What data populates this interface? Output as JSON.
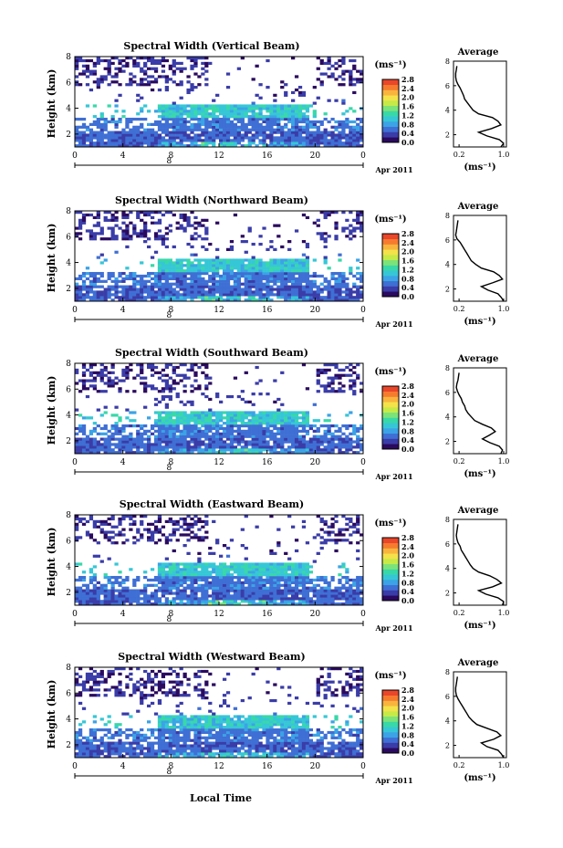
{
  "colors": {
    "background": "#ffffff",
    "axis": "#000000",
    "colorbar": [
      "#2a0a5e",
      "#3a3ca8",
      "#3f6fd4",
      "#3ba3e6",
      "#36c7d6",
      "#39d8a8",
      "#7be37a",
      "#c6ea48",
      "#f4e24a",
      "#f9b43e",
      "#f67b2f",
      "#e9462a"
    ]
  },
  "shared": {
    "xaxis_label": "Local Time",
    "date_label": "Apr 2011",
    "day_marker": "8",
    "avg_title": "Average",
    "ylabel": "Height (km)",
    "units": "(ms⁻¹)"
  },
  "chart_data": [
    {
      "type": "heatmap",
      "title": "Spectral Width (Vertical Beam)",
      "xlabel": "Local Time",
      "ylabel": "Height (km)",
      "xlim": [
        0,
        24
      ],
      "x_ticks": [
        "0",
        "4",
        "8",
        "12",
        "16",
        "20",
        "0"
      ],
      "ylim": [
        1,
        8
      ],
      "y_ticks": [
        "2",
        "4",
        "6",
        "8"
      ],
      "colorbar_ticks": [
        "0.0",
        "0.4",
        "0.8",
        "1.2",
        "1.6",
        "2.0",
        "2.4",
        "2.8"
      ],
      "colorbar_range": [
        0,
        2.8
      ],
      "average_profile": {
        "title": "Average",
        "xlabel": "(ms⁻¹)",
        "x_ticks": [
          "0.2",
          "1.0"
        ],
        "xlim": [
          0.1,
          1.05
        ],
        "y_ticks": [
          "2",
          "4",
          "6",
          "8"
        ],
        "ylim": [
          1,
          8
        ],
        "height": [
          1.0,
          1.3,
          1.6,
          1.9,
          2.2,
          2.5,
          2.8,
          3.1,
          3.4,
          3.7,
          4.0,
          4.3,
          4.6,
          4.9,
          5.2,
          5.5,
          5.8,
          6.1,
          6.4,
          6.7,
          7.0,
          7.3,
          7.6
        ],
        "width": [
          0.95,
          1.0,
          0.92,
          0.7,
          0.55,
          0.78,
          0.95,
          0.9,
          0.8,
          0.55,
          0.45,
          0.4,
          0.35,
          0.3,
          0.28,
          0.25,
          0.22,
          0.18,
          0.15,
          0.14,
          0.14,
          0.15,
          0.16
        ]
      }
    },
    {
      "type": "heatmap",
      "title": "Spectral Width (Northward Beam)",
      "xlabel": "Local Time",
      "ylabel": "Height (km)",
      "xlim": [
        0,
        24
      ],
      "x_ticks": [
        "0",
        "4",
        "8",
        "12",
        "16",
        "20",
        "0"
      ],
      "ylim": [
        1,
        8
      ],
      "y_ticks": [
        "2",
        "4",
        "6",
        "8"
      ],
      "colorbar_ticks": [
        "0.0",
        "0.4",
        "0.8",
        "1.2",
        "1.6",
        "2.0",
        "2.4",
        "2.8"
      ],
      "colorbar_range": [
        0,
        2.8
      ],
      "average_profile": {
        "title": "Average",
        "xlabel": "(ms⁻¹)",
        "x_ticks": [
          "0.2",
          "1.0"
        ],
        "xlim": [
          0.1,
          1.05
        ],
        "y_ticks": [
          "2",
          "4",
          "6",
          "8"
        ],
        "ylim": [
          1,
          8
        ],
        "height": [
          1.0,
          1.3,
          1.6,
          1.9,
          2.2,
          2.5,
          2.8,
          3.1,
          3.4,
          3.7,
          4.0,
          4.3,
          4.6,
          4.9,
          5.2,
          5.5,
          5.8,
          6.1,
          6.4,
          6.7,
          7.0,
          7.3,
          7.6
        ],
        "width": [
          1.0,
          0.96,
          0.9,
          0.72,
          0.6,
          0.8,
          0.98,
          0.92,
          0.82,
          0.6,
          0.5,
          0.42,
          0.38,
          0.34,
          0.3,
          0.26,
          0.22,
          0.16,
          0.14,
          0.15,
          0.16,
          0.17,
          0.18
        ]
      }
    },
    {
      "type": "heatmap",
      "title": "Spectral Width (Southward Beam)",
      "xlabel": "Local Time",
      "ylabel": "Height (km)",
      "xlim": [
        0,
        24
      ],
      "x_ticks": [
        "0",
        "4",
        "8",
        "12",
        "16",
        "20",
        "0"
      ],
      "ylim": [
        1,
        8
      ],
      "y_ticks": [
        "2",
        "4",
        "6",
        "8"
      ],
      "colorbar_ticks": [
        "0.0",
        "0.4",
        "0.8",
        "1.2",
        "1.6",
        "2.0",
        "2.4",
        "2.8"
      ],
      "colorbar_range": [
        0,
        2.8
      ],
      "average_profile": {
        "title": "Average",
        "xlabel": "(ms⁻¹)",
        "x_ticks": [
          "0.2",
          "1.0"
        ],
        "xlim": [
          0.1,
          1.05
        ],
        "y_ticks": [
          "2",
          "4",
          "6",
          "8"
        ],
        "ylim": [
          1,
          8
        ],
        "height": [
          1.0,
          1.3,
          1.6,
          1.9,
          2.2,
          2.5,
          2.8,
          3.1,
          3.4,
          3.7,
          4.0,
          4.3,
          4.6,
          4.9,
          5.2,
          5.5,
          5.8,
          6.1,
          6.4,
          6.7,
          7.0,
          7.3,
          7.6
        ],
        "width": [
          0.95,
          0.98,
          0.92,
          0.75,
          0.62,
          0.74,
          0.85,
          0.78,
          0.62,
          0.48,
          0.42,
          0.36,
          0.32,
          0.3,
          0.26,
          0.24,
          0.2,
          0.17,
          0.15,
          0.16,
          0.18,
          0.19,
          0.2
        ]
      }
    },
    {
      "type": "heatmap",
      "title": "Spectral Width (Eastward Beam)",
      "xlabel": "Local Time",
      "ylabel": "Height (km)",
      "xlim": [
        0,
        24
      ],
      "x_ticks": [
        "0",
        "4",
        "8",
        "12",
        "16",
        "20",
        "0"
      ],
      "ylim": [
        1,
        8
      ],
      "y_ticks": [
        "2",
        "4",
        "6",
        "8"
      ],
      "colorbar_ticks": [
        "0.0",
        "0.4",
        "0.8",
        "1.2",
        "1.6",
        "2.0",
        "2.4",
        "2.8"
      ],
      "colorbar_range": [
        0,
        2.8
      ],
      "average_profile": {
        "title": "Average",
        "xlabel": "(ms⁻¹)",
        "x_ticks": [
          "0.2",
          "1.0"
        ],
        "xlim": [
          0.1,
          1.05
        ],
        "y_ticks": [
          "2",
          "4",
          "6",
          "8"
        ],
        "ylim": [
          1,
          8
        ],
        "height": [
          1.0,
          1.3,
          1.6,
          1.9,
          2.2,
          2.5,
          2.8,
          3.1,
          3.4,
          3.7,
          4.0,
          4.3,
          4.6,
          4.9,
          5.2,
          5.5,
          5.8,
          6.1,
          6.4,
          6.7,
          7.0,
          7.3,
          7.6
        ],
        "width": [
          0.98,
          1.0,
          0.9,
          0.68,
          0.55,
          0.8,
          0.96,
          0.88,
          0.75,
          0.55,
          0.45,
          0.4,
          0.36,
          0.32,
          0.28,
          0.24,
          0.22,
          0.18,
          0.16,
          0.15,
          0.16,
          0.17,
          0.18
        ]
      }
    },
    {
      "type": "heatmap",
      "title": "Spectral Width (Westward Beam)",
      "xlabel": "Local Time",
      "ylabel": "Height (km)",
      "xlim": [
        0,
        24
      ],
      "x_ticks": [
        "0",
        "4",
        "8",
        "12",
        "16",
        "20",
        "0"
      ],
      "ylim": [
        1,
        8
      ],
      "y_ticks": [
        "2",
        "4",
        "6",
        "8"
      ],
      "colorbar_ticks": [
        "0.0",
        "0.4",
        "0.8",
        "1.2",
        "1.6",
        "2.0",
        "2.4",
        "2.8"
      ],
      "colorbar_range": [
        0,
        2.8
      ],
      "average_profile": {
        "title": "Average",
        "xlabel": "(ms⁻¹)",
        "x_ticks": [
          "0.2",
          "1.0"
        ],
        "xlim": [
          0.1,
          1.05
        ],
        "y_ticks": [
          "2",
          "4",
          "6",
          "8"
        ],
        "ylim": [
          1,
          8
        ],
        "height": [
          1.0,
          1.3,
          1.6,
          1.9,
          2.2,
          2.5,
          2.8,
          3.1,
          3.4,
          3.7,
          4.0,
          4.3,
          4.6,
          4.9,
          5.2,
          5.5,
          5.8,
          6.1,
          6.4,
          6.7,
          7.0,
          7.3,
          7.6
        ],
        "width": [
          1.0,
          0.96,
          0.9,
          0.7,
          0.6,
          0.82,
          0.95,
          0.88,
          0.7,
          0.52,
          0.44,
          0.38,
          0.34,
          0.3,
          0.26,
          0.22,
          0.18,
          0.15,
          0.14,
          0.14,
          0.15,
          0.16,
          0.17
        ]
      }
    }
  ]
}
